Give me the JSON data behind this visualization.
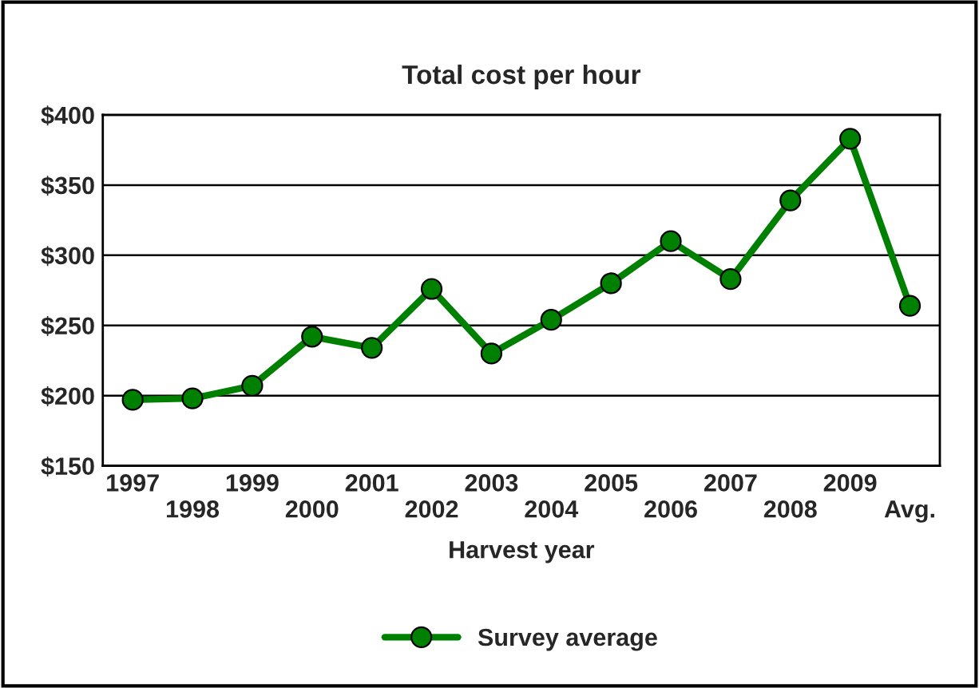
{
  "chart_data": {
    "type": "line",
    "title": "Total cost per hour",
    "xlabel": "Harvest year",
    "categories": [
      "1997",
      "1998",
      "1999",
      "2000",
      "2001",
      "2002",
      "2003",
      "2004",
      "2005",
      "2006",
      "2007",
      "2008",
      "2009",
      "Avg."
    ],
    "series": [
      {
        "name": "Survey average",
        "color": "#008000",
        "values": [
          197,
          198,
          207,
          242,
          234,
          276,
          230,
          254,
          280,
          310,
          283,
          339,
          383,
          264
        ]
      }
    ],
    "ylim": [
      150,
      400
    ],
    "yticks": [
      {
        "value": 150,
        "label": "$150"
      },
      {
        "value": 200,
        "label": "$200"
      },
      {
        "value": 250,
        "label": "$250"
      },
      {
        "value": 300,
        "label": "$300"
      },
      {
        "value": 350,
        "label": "$350"
      },
      {
        "value": 400,
        "label": "$400"
      }
    ],
    "grid": "y",
    "legend": "bottom",
    "marker": "circle",
    "line_style": "solid"
  }
}
